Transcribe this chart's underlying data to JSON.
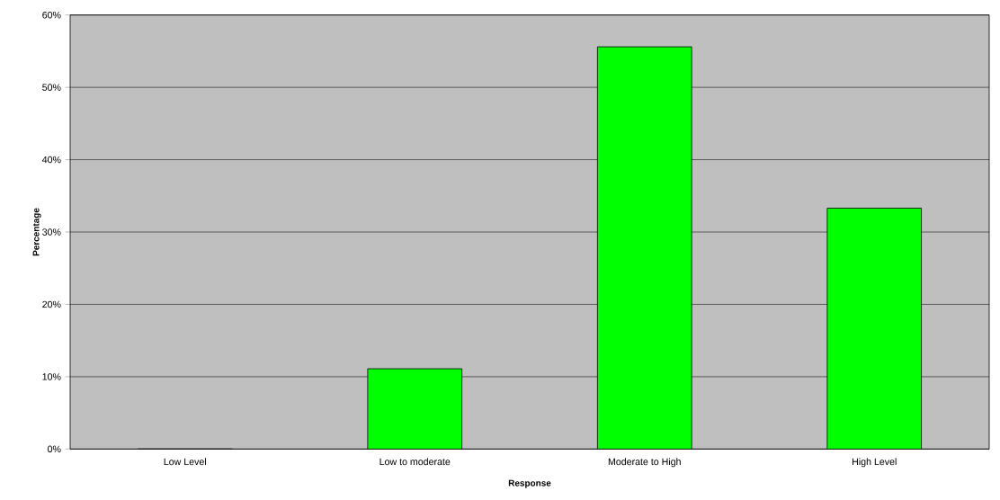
{
  "chart_data": {
    "type": "bar",
    "xlabel": "Response",
    "ylabel": "Percentage",
    "categories": [
      "Low Level",
      "Low to moderate",
      "Moderate to High",
      "High Level"
    ],
    "values": [
      0,
      11.1,
      55.6,
      33.3
    ],
    "color": "#00ff00",
    "ylim": [
      0,
      60
    ],
    "yticks": [
      {
        "value": 0,
        "label": "0%"
      },
      {
        "value": 10,
        "label": "10%"
      },
      {
        "value": 20,
        "label": "20%"
      },
      {
        "value": 30,
        "label": "30%"
      },
      {
        "value": 40,
        "label": "40%"
      },
      {
        "value": 50,
        "label": "50%"
      },
      {
        "value": 60,
        "label": "60%"
      }
    ],
    "grid": "y"
  }
}
